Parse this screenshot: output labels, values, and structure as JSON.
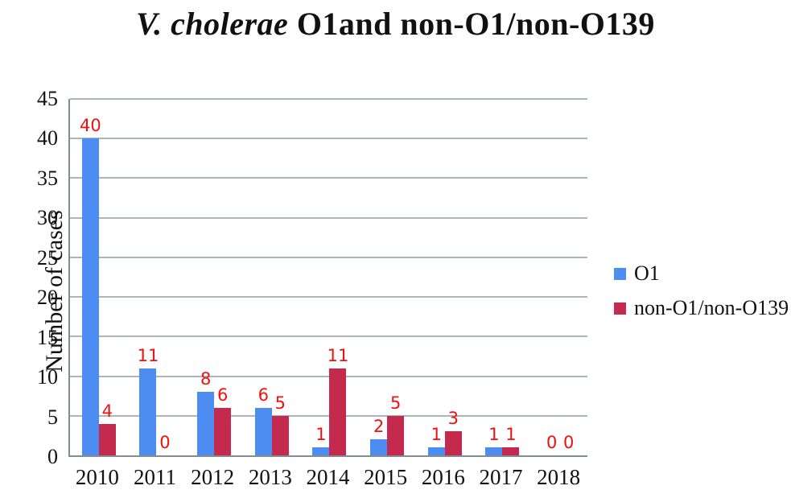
{
  "title": {
    "italic": "V. cholerae",
    "rest": " O1and non-O1/non-O139"
  },
  "chart_data": {
    "type": "bar",
    "title": "V. cholerae O1and non-O1/non-O139",
    "categories": [
      "2010",
      "2011",
      "2012",
      "2013",
      "2014",
      "2015",
      "2016",
      "2017",
      "2018"
    ],
    "series": [
      {
        "name": "O1",
        "color": "#4d8cf0",
        "values": [
          40,
          11,
          8,
          6,
          1,
          2,
          1,
          1,
          0
        ]
      },
      {
        "name": "non-O1/non-O139",
        "color": "#c42a4d",
        "values": [
          4,
          0,
          6,
          5,
          11,
          5,
          3,
          1,
          0
        ]
      }
    ],
    "xlabel": "",
    "ylabel": "Number of cases",
    "ylim": [
      0,
      45
    ],
    "yticks": [
      0,
      5,
      10,
      15,
      20,
      25,
      30,
      35,
      40,
      45
    ],
    "grid": true,
    "gridline_color": "#a9b6ba",
    "axis_color": "#828d90",
    "data_label_color": "#f2100f",
    "legend_position": "right"
  }
}
